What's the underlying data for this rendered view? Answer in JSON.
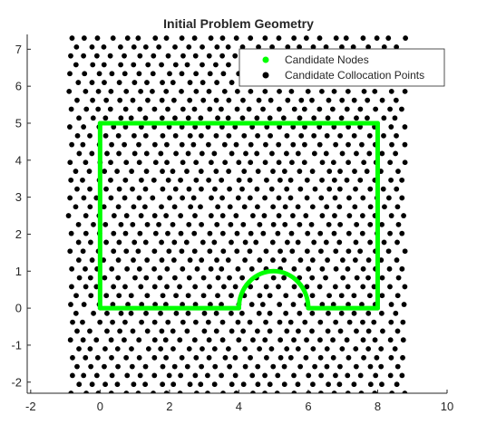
{
  "chart_data": {
    "type": "scatter",
    "title": "Initial Problem Geometry",
    "xlabel": "",
    "ylabel": "",
    "xlim": [
      -2.1,
      10
    ],
    "ylim": [
      -2.3,
      7.4
    ],
    "x_ticks": [
      "-2",
      "0",
      "2",
      "4",
      "6",
      "8",
      "10"
    ],
    "y_ticks": [
      "-2",
      "-1",
      "0",
      "1",
      "2",
      "3",
      "4",
      "5",
      "6",
      "7"
    ],
    "x_tick_values": [
      -2,
      0,
      2,
      4,
      6,
      8,
      10
    ],
    "y_tick_values": [
      -2,
      -1,
      0,
      1,
      2,
      3,
      4,
      5,
      6,
      7
    ],
    "grid": false,
    "legend_position": "top-right",
    "legend": [
      {
        "label": "Candidate Nodes",
        "color": "#00ff00"
      },
      {
        "label": "Candidate Collocation Points",
        "color": "#000000"
      }
    ],
    "series": [
      {
        "name": "Candidate Nodes",
        "color": "#00ff00",
        "boundary_segments": [
          {
            "from": [
              0,
              0
            ],
            "to": [
              0,
              5
            ]
          },
          {
            "from": [
              0,
              5
            ],
            "to": [
              8,
              5
            ]
          },
          {
            "from": [
              8,
              5
            ],
            "to": [
              8,
              0
            ]
          },
          {
            "from": [
              8,
              0
            ],
            "to": [
              6,
              0
            ]
          },
          {
            "from": [
              4,
              0
            ],
            "to": [
              0,
              0
            ]
          }
        ],
        "arc": {
          "center": [
            5,
            0
          ],
          "radius": 1,
          "start_deg": 0,
          "end_deg": 180
        }
      },
      {
        "name": "Candidate Collocation Points",
        "color": "#000000",
        "grid_x_range": [
          -0.85,
          8.85
        ],
        "grid_y_range": [
          -2.3,
          7.3
        ],
        "grid_step_x": 0.4,
        "grid_step_y": 0.24,
        "row_offset_x": 0.2
      }
    ]
  }
}
